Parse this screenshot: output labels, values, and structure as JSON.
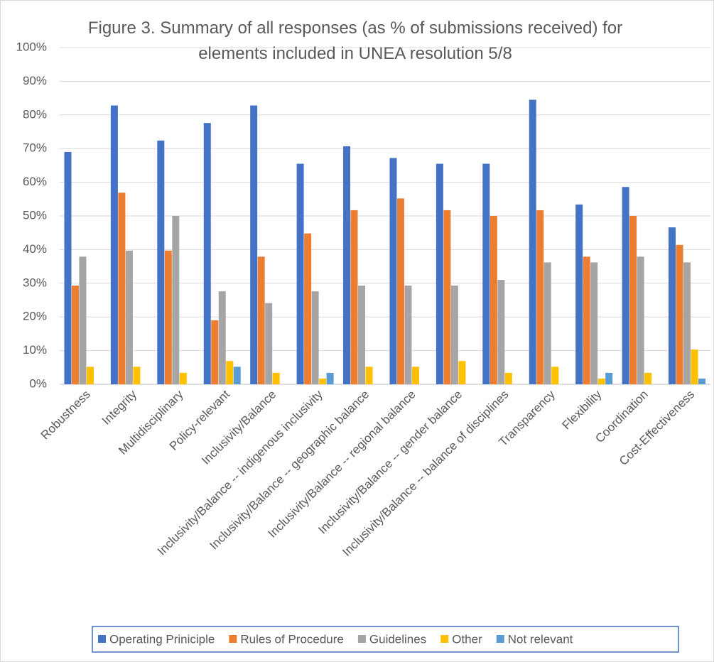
{
  "chart_data": {
    "type": "bar",
    "title": "Figure 3. Summary of all responses (as % of submissions received) for elements included in UNEA resolution 5/8",
    "categories": [
      "Robustness",
      "Integrity",
      "Multidisciplinary",
      "Policy-relevant",
      "Inclusivity/Balance",
      "Inclusivity/Balance -- indigenous inclusivity",
      "Inclusivity/Balance -- geographic balance",
      "Inclusivity/Balance -- regional balance",
      "Inclusivity/Balance -- gender balance",
      "Inclusivity/Balance -- balance of disciplines",
      "Transparency",
      "Flexibility",
      "Coordination",
      "Cost-Effectiveness"
    ],
    "series": [
      {
        "name": "Operating Priniciple",
        "color": "#4472c4",
        "values": [
          69,
          82.8,
          72.4,
          77.6,
          82.8,
          65.5,
          70.7,
          67.2,
          65.5,
          65.5,
          84.5,
          53.4,
          58.6,
          46.6
        ]
      },
      {
        "name": "Rules of Procedure",
        "color": "#ed7d31",
        "values": [
          29.3,
          56.9,
          39.7,
          19,
          37.9,
          44.8,
          51.7,
          55.2,
          51.7,
          50,
          51.7,
          37.9,
          50,
          41.4
        ]
      },
      {
        "name": "Guidelines",
        "color": "#a5a5a5",
        "values": [
          37.9,
          39.7,
          50,
          27.6,
          24.1,
          27.6,
          29.3,
          29.3,
          29.3,
          31,
          36.2,
          36.2,
          37.9,
          36.2
        ]
      },
      {
        "name": "Other",
        "color": "#ffc000",
        "values": [
          5.2,
          5.2,
          3.4,
          6.9,
          3.4,
          1.7,
          5.2,
          5.2,
          6.9,
          3.4,
          5.2,
          1.7,
          3.4,
          10.3
        ]
      },
      {
        "name": "Not relevant",
        "color": "#5b9bd5",
        "values": [
          0,
          0,
          0,
          5.2,
          0,
          3.4,
          0,
          0,
          0,
          0,
          0,
          3.4,
          0,
          1.7
        ]
      }
    ],
    "ylim": [
      0,
      100
    ],
    "yticks": [
      {
        "value": 0,
        "label": "0%"
      },
      {
        "value": 10,
        "label": "10%"
      },
      {
        "value": 20,
        "label": "20%"
      },
      {
        "value": 30,
        "label": "30%"
      },
      {
        "value": 40,
        "label": "40%"
      },
      {
        "value": 50,
        "label": "50%"
      },
      {
        "value": 60,
        "label": "60%"
      },
      {
        "value": 70,
        "label": "70%"
      },
      {
        "value": 80,
        "label": "80%"
      },
      {
        "value": 90,
        "label": "90%"
      },
      {
        "value": 100,
        "label": "100%"
      }
    ],
    "grid": true,
    "legend": "bottom"
  }
}
